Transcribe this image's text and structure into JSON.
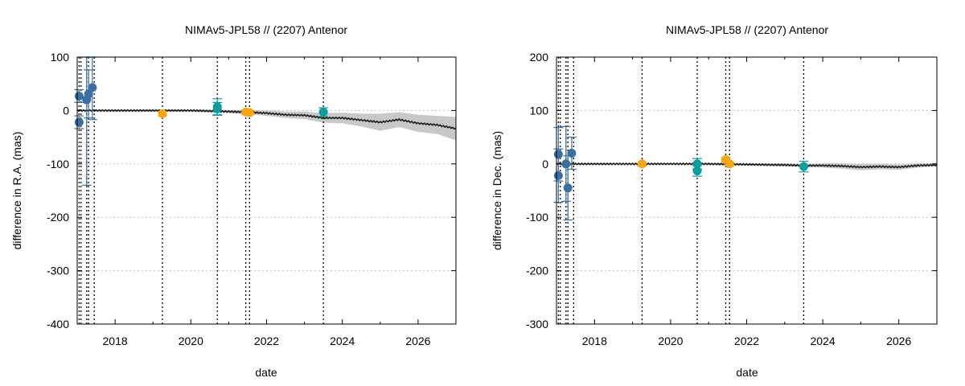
{
  "colors": {
    "orange": "#f6a615",
    "teal": "#0e9c9c",
    "blue": "#3b6fa2",
    "band": "#c8c8c8",
    "curve": "#1a1a1a"
  },
  "chart_data": [
    {
      "type": "scatter",
      "title": "NIMAv5-JPL58 // (2207) Antenor",
      "xlabel": "date",
      "ylabel": "difference in R.A. (mas)",
      "xlim": [
        2017.0,
        2027.0
      ],
      "ylim": [
        -400,
        100
      ],
      "xticks": [
        2018,
        2020,
        2022,
        2024,
        2026
      ],
      "yticks": [
        -400,
        -300,
        -200,
        -100,
        0,
        100
      ],
      "grid": true,
      "vlines": [
        2017.05,
        2017.1,
        2017.25,
        2017.3,
        2017.45,
        2019.25,
        2020.7,
        2021.45,
        2021.55,
        2023.5
      ],
      "series": [
        {
          "color": "blue",
          "points": [
            {
              "x": 2017.05,
              "y": 27,
              "err": 12
            },
            {
              "x": 2017.05,
              "y": -22,
              "err": 12
            },
            {
              "x": 2017.25,
              "y": 20,
              "err": 160
            },
            {
              "x": 2017.3,
              "y": 31,
              "err": 45
            },
            {
              "x": 2017.4,
              "y": 43,
              "err": 60
            }
          ]
        },
        {
          "color": "orange",
          "points": [
            {
              "x": 2019.25,
              "y": -6,
              "err": 4
            },
            {
              "x": 2021.45,
              "y": -3,
              "err": 4
            },
            {
              "x": 2021.55,
              "y": -4,
              "err": 4
            }
          ]
        },
        {
          "color": "teal",
          "points": [
            {
              "x": 2020.7,
              "y": 7,
              "err": 15
            },
            {
              "x": 2020.7,
              "y": 3,
              "err": 12
            },
            {
              "x": 2023.5,
              "y": -3,
              "err": 8
            }
          ]
        }
      ],
      "model": {
        "x": [
          2017.0,
          2018.0,
          2019.0,
          2020.0,
          2021.0,
          2021.5,
          2022.0,
          2022.5,
          2023.0,
          2023.5,
          2024.0,
          2024.5,
          2025.0,
          2025.5,
          2026.0,
          2026.5,
          2027.0
        ],
        "y": [
          0,
          0,
          0,
          0,
          -2,
          -3,
          -5,
          -8,
          -9,
          -14,
          -14,
          -18,
          -22,
          -17,
          -24,
          -27,
          -34
        ],
        "band_half": [
          1,
          2,
          2,
          2,
          3,
          4,
          5,
          6,
          7,
          9,
          10,
          12,
          16,
          14,
          16,
          17,
          22
        ]
      }
    },
    {
      "type": "scatter",
      "title": "NIMAv5-JPL58 // (2207) Antenor",
      "xlabel": "date",
      "ylabel": "difference in Dec. (mas)",
      "xlim": [
        2017.0,
        2027.0
      ],
      "ylim": [
        -300,
        200
      ],
      "xticks": [
        2018,
        2020,
        2022,
        2024,
        2026
      ],
      "yticks": [
        -300,
        -200,
        -100,
        0,
        100,
        200
      ],
      "grid": true,
      "vlines": [
        2017.05,
        2017.1,
        2017.25,
        2017.3,
        2017.45,
        2019.25,
        2020.7,
        2021.45,
        2021.55,
        2023.5
      ],
      "series": [
        {
          "color": "blue",
          "points": [
            {
              "x": 2017.05,
              "y": 18,
              "err": 50
            },
            {
              "x": 2017.05,
              "y": -22,
              "err": 50
            },
            {
              "x": 2017.25,
              "y": 0,
              "err": 70
            },
            {
              "x": 2017.3,
              "y": -45,
              "err": 60
            },
            {
              "x": 2017.4,
              "y": 20,
              "err": 30
            }
          ]
        },
        {
          "color": "orange",
          "points": [
            {
              "x": 2019.25,
              "y": 0,
              "err": 4
            },
            {
              "x": 2021.45,
              "y": 8,
              "err": 4
            },
            {
              "x": 2021.55,
              "y": 0,
              "err": 4
            }
          ]
        },
        {
          "color": "teal",
          "points": [
            {
              "x": 2020.7,
              "y": 0,
              "err": 10
            },
            {
              "x": 2020.7,
              "y": -13,
              "err": 10
            },
            {
              "x": 2023.5,
              "y": -5,
              "err": 10
            }
          ]
        }
      ],
      "model": {
        "x": [
          2017.0,
          2018.0,
          2019.0,
          2020.0,
          2021.0,
          2022.0,
          2023.0,
          2023.5,
          2024.0,
          2024.5,
          2025.0,
          2025.5,
          2026.0,
          2026.5,
          2027.0
        ],
        "y": [
          0,
          0,
          0,
          0,
          0,
          -1,
          -2,
          -3,
          -3,
          -4,
          -6,
          -5,
          -6,
          -3,
          -2
        ],
        "band_half": [
          1,
          1,
          1,
          1,
          2,
          2,
          3,
          3,
          4,
          5,
          6,
          5,
          5,
          4,
          3
        ]
      }
    }
  ]
}
